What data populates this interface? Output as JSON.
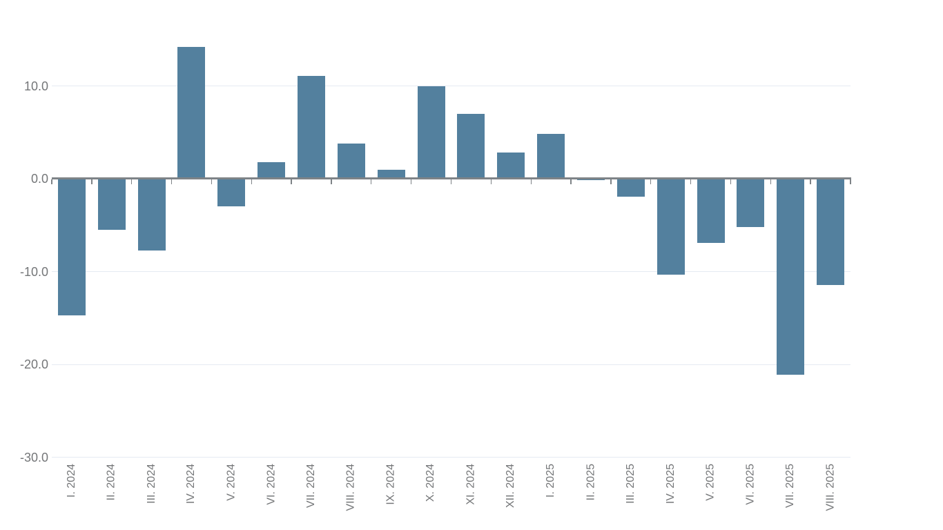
{
  "chart_data": {
    "type": "bar",
    "title": "",
    "xlabel": "",
    "ylabel": "",
    "categories": [
      "I. 2024",
      "II. 2024",
      "III. 2024",
      "IV. 2024",
      "V. 2024",
      "VI. 2024",
      "VII. 2024",
      "VIII. 2024",
      "IX. 2024",
      "X. 2024",
      "XI. 2024",
      "XII. 2024",
      "I. 2025",
      "II. 2025",
      "III. 2025",
      "IV. 2025",
      "V. 2025",
      "VI. 2025",
      "VII. 2025",
      "VIII. 2025"
    ],
    "values": [
      -14.7,
      -5.5,
      -7.7,
      14.2,
      -2.9,
      1.8,
      11.1,
      3.8,
      1.0,
      10.0,
      7.0,
      2.8,
      4.8,
      -0.1,
      -1.9,
      -10.3,
      -6.9,
      -5.2,
      -21.1,
      -11.4
    ],
    "ylim": [
      -30,
      15
    ],
    "yticks": [
      {
        "value": 10,
        "label": "10.0"
      },
      {
        "value": 0,
        "label": "0.0"
      },
      {
        "value": -10,
        "label": "-10.0"
      },
      {
        "value": -20,
        "label": "-20.0"
      },
      {
        "value": -30,
        "label": "-30.0"
      }
    ],
    "grid": true,
    "legend": false,
    "colors": {
      "bar": "#53809e",
      "axis": "#7e8387",
      "gridline": "#e5eaf2",
      "label": "#747678",
      "background": "#ffffff"
    }
  }
}
